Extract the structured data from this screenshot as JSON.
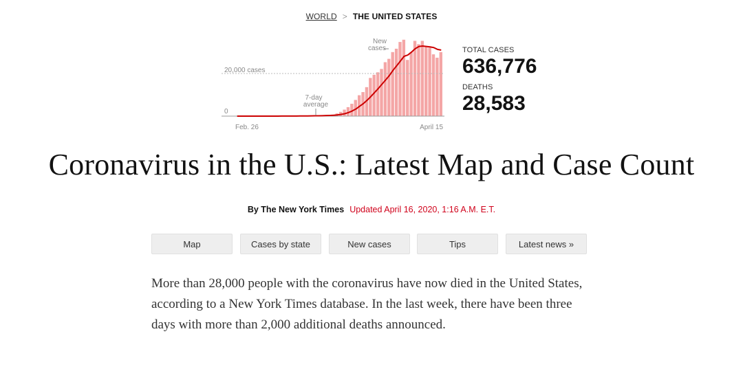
{
  "breadcrumb": {
    "world": "WORLD",
    "separator": ">",
    "current": "THE UNITED STATES"
  },
  "chart_data": {
    "type": "bar",
    "title": "",
    "x_start_label": "Feb. 26",
    "x_end_label": "April 15",
    "y_label_20000": "20,000 cases",
    "y_label_0": "0",
    "annotation_new_cases": [
      "New",
      "cases"
    ],
    "annotation_avg": [
      "7-day",
      "average"
    ],
    "ylim": [
      0,
      37000
    ],
    "bar_color": "#f4a6a6",
    "line_color": "#cc0000",
    "series": [
      {
        "name": "New cases",
        "values": [
          1,
          2,
          3,
          4,
          5,
          6,
          8,
          10,
          12,
          15,
          20,
          25,
          30,
          40,
          50,
          60,
          80,
          100,
          120,
          140,
          170,
          200,
          250,
          300,
          380,
          480,
          700,
          1200,
          1900,
          2900,
          4000,
          5500,
          7200,
          9300,
          10700,
          12900,
          17000,
          18400,
          19500,
          21000,
          24000,
          25500,
          28500,
          30000,
          33000,
          34000,
          25000,
          28500,
          33500,
          32000,
          33500,
          31000,
          30500,
          27500,
          26000,
          28500
        ]
      },
      {
        "name": "7-day average",
        "values": [
          1,
          1,
          2,
          3,
          4,
          5,
          6,
          7,
          9,
          11,
          14,
          17,
          21,
          26,
          33,
          40,
          50,
          62,
          78,
          96,
          118,
          144,
          172,
          209,
          253,
          300,
          378,
          520,
          766,
          1069,
          1577,
          2283,
          3160,
          4360,
          5550,
          7021,
          8640,
          10417,
          12210,
          14133,
          16057,
          17992,
          20357,
          22386,
          24495,
          26633,
          27200,
          28500,
          30000,
          31000,
          31200,
          31000,
          30800,
          30500,
          29700,
          29400
        ]
      }
    ]
  },
  "stats": {
    "cases_label": "TOTAL CASES",
    "cases_value": "636,776",
    "deaths_label": "DEATHS",
    "deaths_value": "28,583"
  },
  "headline": "Coronavirus in the U.S.: Latest Map and Case Count",
  "byline": {
    "author": "By The New York Times",
    "updated": "Updated April 16, 2020, 1:16 A.M. E.T."
  },
  "nav": {
    "map": "Map",
    "cases_by_state": "Cases by state",
    "new_cases": "New cases",
    "tips": "Tips",
    "latest_news": "Latest news »"
  },
  "article": {
    "paragraph": "More than 28,000 people with the coronavirus have now died in the United States, according to a New York Times database. In the last week, there have been three days with more than 2,000 additional deaths announced."
  }
}
